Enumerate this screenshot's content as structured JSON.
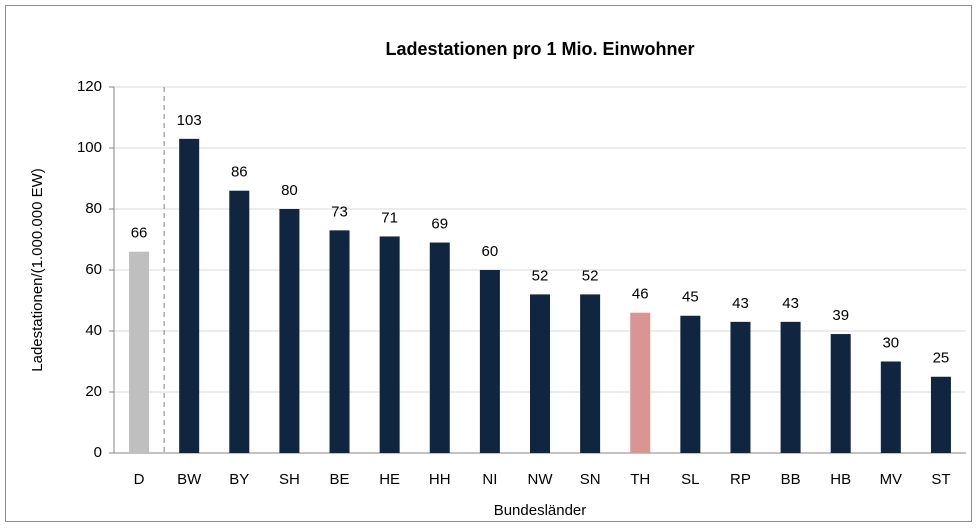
{
  "chart_data": {
    "type": "bar",
    "title": "Ladestationen pro 1 Mio. Einwohner",
    "ylabel": "Ladestationen/(1.000.000 EW)",
    "xlabel": "Bundesländer",
    "categories": [
      "D",
      "BW",
      "BY",
      "SH",
      "BE",
      "HE",
      "HH",
      "NI",
      "NW",
      "SN",
      "TH",
      "SL",
      "RP",
      "BB",
      "HB",
      "MV",
      "ST"
    ],
    "values": [
      66,
      103,
      86,
      80,
      73,
      71,
      69,
      60,
      52,
      52,
      46,
      45,
      43,
      43,
      39,
      30,
      25
    ],
    "colors": [
      "#bfbfbf",
      "#10253f",
      "#10253f",
      "#10253f",
      "#10253f",
      "#10253f",
      "#10253f",
      "#10253f",
      "#10253f",
      "#10253f",
      "#d99594",
      "#10253f",
      "#10253f",
      "#10253f",
      "#10253f",
      "#10253f",
      "#10253f"
    ],
    "ylim": [
      0,
      120
    ],
    "yticks": [
      0,
      20,
      40,
      60,
      80,
      100,
      120
    ],
    "grid": true
  }
}
